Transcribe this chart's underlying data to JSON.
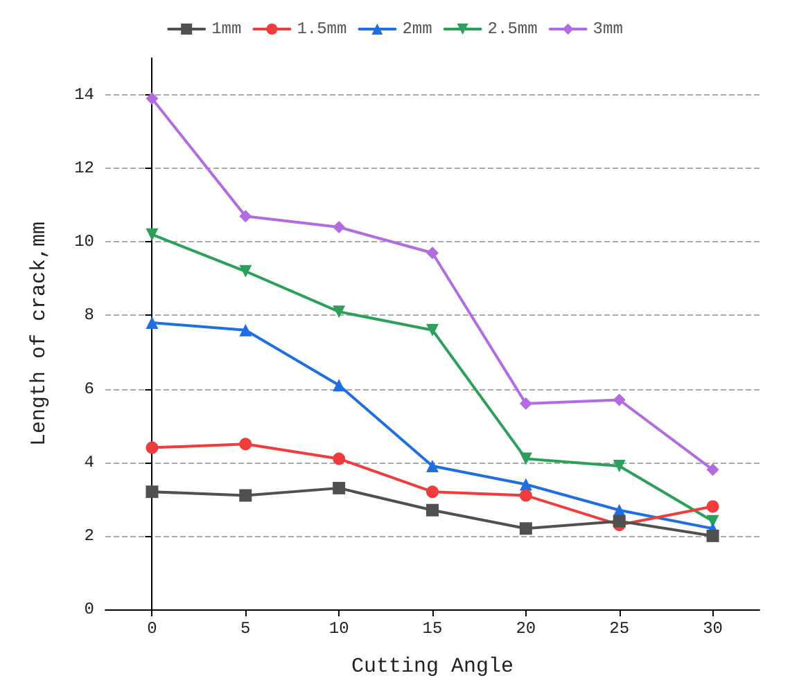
{
  "chart_data": {
    "type": "line",
    "xlabel": "Cutting Angle",
    "ylabel": "Length of crack,mm",
    "x": [
      0,
      5,
      10,
      15,
      20,
      25,
      30
    ],
    "xlim": [
      -2.5,
      32.5
    ],
    "xticks": [
      0,
      5,
      10,
      15,
      20,
      25,
      30
    ],
    "ylim": [
      0,
      15
    ],
    "yticks": [
      0,
      2,
      4,
      6,
      8,
      10,
      12,
      14
    ],
    "grid": "y",
    "legend": "top",
    "line_style": "solid",
    "series": [
      {
        "name": "1mm",
        "color": "#505050",
        "marker": "square",
        "values": [
          3.2,
          3.1,
          3.3,
          2.7,
          2.2,
          2.4,
          2.0
        ]
      },
      {
        "name": "1.5mm",
        "color": "#f03c3c",
        "marker": "circle",
        "values": [
          4.4,
          4.5,
          4.1,
          3.2,
          3.1,
          2.3,
          2.8
        ]
      },
      {
        "name": "2mm",
        "color": "#1f6fe0",
        "marker": "triangle",
        "values": [
          7.8,
          7.6,
          6.1,
          3.9,
          3.4,
          2.7,
          2.2
        ]
      },
      {
        "name": "2.5mm",
        "color": "#2ca05a",
        "marker": "triangle-down",
        "values": [
          10.2,
          9.2,
          8.1,
          7.6,
          4.1,
          3.9,
          2.4
        ]
      },
      {
        "name": "3mm",
        "color": "#b26be0",
        "marker": "diamond",
        "values": [
          13.9,
          10.7,
          10.4,
          9.7,
          5.6,
          5.7,
          3.8
        ]
      }
    ]
  }
}
